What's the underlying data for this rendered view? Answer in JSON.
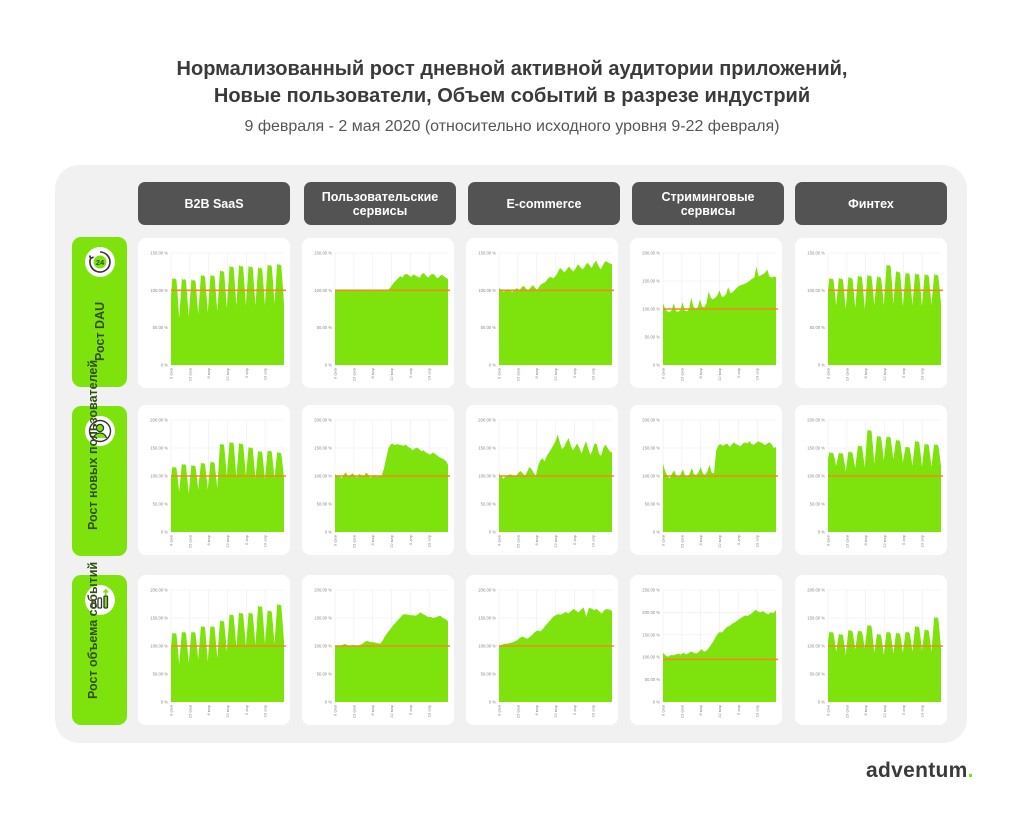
{
  "header": {
    "title_line1": "Нормализованный рост дневной активной аудитории приложений,",
    "title_line2": "Новые пользователи, Объем событий в разрезе индустрий",
    "subtitle": "9 февраля - 2 мая 2020 (относительно исходного уровня 9-22 февраля)"
  },
  "columns": [
    {
      "label": "B2B SaaS"
    },
    {
      "label": "Пользовательские сервисы"
    },
    {
      "label": "E-commerce"
    },
    {
      "label": "Стриминговые сервисы"
    },
    {
      "label": "Финтех"
    }
  ],
  "rows": [
    {
      "label": "Рост DAU",
      "icon": "clock-24-icon"
    },
    {
      "label": "Рост новых пользователей",
      "icon": "add-user-icon"
    },
    {
      "label": "Рост объема событий",
      "icon": "bar-growth-icon"
    }
  ],
  "logo": {
    "text": "adventum",
    "dot": "."
  },
  "colors": {
    "area": "#7ee20d",
    "baseline": "#f08a1c",
    "header_bg": "#535353",
    "row_bg": "#7ee20d",
    "panel_bg": "#f1f1f1"
  },
  "chart_data": [
    {
      "type": "area",
      "row": "Рост DAU",
      "column": "B2B SaaS",
      "ylim": [
        0,
        150
      ],
      "yticks": [
        "0 %",
        "50.00 %",
        "100.00 %",
        "150.00 %"
      ],
      "xticks": [
        "9 фев",
        "23 фев",
        "8 мар",
        "22 мар",
        "5 апр",
        "19 апр"
      ],
      "baseline": 100,
      "pattern": "weekly",
      "weekly_peaks": [
        117,
        116,
        115,
        121,
        121,
        127,
        133,
        134,
        133,
        131,
        135,
        136
      ],
      "weekly_troughs": [
        63,
        65,
        68,
        70,
        72,
        76,
        80,
        80,
        80,
        80,
        82,
        82
      ]
    },
    {
      "type": "area",
      "row": "Рост DAU",
      "column": "Пользовательские сервисы",
      "ylim": [
        0,
        150
      ],
      "yticks": [
        "0 %",
        "50.00 %",
        "100.00 %",
        "150.00 %"
      ],
      "xticks": [
        "9 фев",
        "23 фев",
        "8 мар",
        "22 мар",
        "5 апр",
        "19 апр"
      ],
      "baseline": 100,
      "pattern": "smooth",
      "values": [
        100,
        100,
        100,
        100,
        100,
        100,
        100,
        100,
        100,
        100,
        100,
        100,
        100,
        100,
        100,
        100,
        100,
        100,
        100,
        100,
        100,
        100,
        100,
        100,
        100,
        102,
        106,
        110,
        113,
        116,
        119,
        117,
        121,
        122,
        120,
        118,
        121,
        120,
        118,
        117,
        122,
        123,
        119,
        117,
        121,
        122,
        120,
        116,
        118,
        121,
        119,
        117,
        115
      ]
    },
    {
      "type": "area",
      "row": "Рост DAU",
      "column": "E-commerce",
      "ylim": [
        0,
        150
      ],
      "yticks": [
        "0 %",
        "50.00 %",
        "100.00 %",
        "150.00 %"
      ],
      "xticks": [
        "9 фев",
        "23 фев",
        "8 мар",
        "22 мар",
        "5 апр",
        "19 апр"
      ],
      "baseline": 100,
      "pattern": "smooth",
      "values": [
        103,
        101,
        98,
        100,
        102,
        99,
        98,
        101,
        103,
        100,
        104,
        106,
        102,
        100,
        104,
        107,
        103,
        101,
        106,
        109,
        110,
        113,
        117,
        118,
        116,
        119,
        124,
        130,
        127,
        124,
        128,
        132,
        128,
        125,
        130,
        135,
        131,
        128,
        132,
        137,
        134,
        130,
        136,
        140,
        133,
        128,
        134,
        139,
        138,
        136,
        135
      ]
    },
    {
      "type": "area",
      "row": "Рост DAU",
      "column": "Стриминговые сервисы",
      "ylim": [
        0,
        200
      ],
      "yticks": [
        "0 %",
        "50.00 %",
        "100.00 %",
        "150.00 %",
        "200.00 %"
      ],
      "xticks": [
        "9 фев",
        "23 фев",
        "8 мар",
        "22 мар",
        "5 апр",
        "19 апр"
      ],
      "baseline": 100,
      "pattern": "smooth",
      "values": [
        110,
        100,
        96,
        94,
        98,
        110,
        96,
        95,
        98,
        112,
        97,
        96,
        100,
        120,
        104,
        101,
        103,
        117,
        104,
        103,
        110,
        131,
        120,
        117,
        120,
        124,
        133,
        122,
        122,
        126,
        139,
        128,
        130,
        134,
        138,
        141,
        143,
        144,
        146,
        148,
        151,
        154,
        156,
        176,
        158,
        160,
        162,
        165,
        170,
        158,
        156,
        158,
        157
      ]
    },
    {
      "type": "area",
      "row": "Рост DAU",
      "column": "Финтех",
      "ylim": [
        0,
        150
      ],
      "yticks": [
        "0 %",
        "50.00 %",
        "100.00 %",
        "150.00 %"
      ],
      "xticks": [
        "9 фев",
        "23 фев",
        "8 мар",
        "22 мар",
        "5 апр",
        "19 апр"
      ],
      "baseline": 100,
      "pattern": "weekly",
      "weekly_peaks": [
        117,
        117,
        118,
        120,
        121,
        119,
        135,
        126,
        124,
        123,
        122,
        122
      ],
      "weekly_troughs": [
        80,
        75,
        77,
        75,
        80,
        80,
        82,
        78,
        80,
        78,
        80,
        82
      ]
    },
    {
      "type": "area",
      "row": "Рост новых пользователей",
      "column": "B2B SaaS",
      "ylim": [
        0,
        200
      ],
      "yticks": [
        "0 %",
        "50.00 %",
        "100.00 %",
        "150.00 %",
        "200.00 %"
      ],
      "xticks": [
        "9 фев",
        "23 фев",
        "8 мар",
        "22 мар",
        "5 апр",
        "19 апр"
      ],
      "baseline": 100,
      "pattern": "weekly",
      "weekly_peaks": [
        117,
        122,
        120,
        124,
        126,
        158,
        161,
        159,
        152,
        145,
        146,
        143
      ],
      "weekly_troughs": [
        72,
        68,
        76,
        76,
        78,
        100,
        98,
        100,
        96,
        94,
        96,
        96
      ]
    },
    {
      "type": "area",
      "row": "Рост новых пользователей",
      "column": "Пользовательские сервисы",
      "ylim": [
        0,
        200
      ],
      "yticks": [
        "0 %",
        "50.00 %",
        "100.00 %",
        "150.00 %",
        "200.00 %"
      ],
      "xticks": [
        "9 фев",
        "23 фев",
        "8 мар",
        "22 мар",
        "5 апр",
        "19 апр"
      ],
      "baseline": 100,
      "pattern": "smooth",
      "values": [
        104,
        99,
        101,
        96,
        103,
        106,
        98,
        102,
        105,
        100,
        97,
        104,
        101,
        99,
        106,
        103,
        97,
        100,
        102,
        98,
        101,
        100,
        112,
        130,
        148,
        156,
        158,
        155,
        157,
        156,
        155,
        154,
        156,
        152,
        150,
        146,
        149,
        151,
        148,
        144,
        146,
        142,
        140,
        138,
        142,
        140,
        137,
        134,
        132,
        130,
        127,
        120
      ]
    },
    {
      "type": "area",
      "row": "Рост новых пользователей",
      "column": "E-commerce",
      "ylim": [
        0,
        200
      ],
      "yticks": [
        "0 %",
        "50.00 %",
        "100.00 %",
        "150.00 %",
        "200.00 %"
      ],
      "xticks": [
        "9 фев",
        "23 фев",
        "8 мар",
        "22 мар",
        "5 апр",
        "19 апр"
      ],
      "baseline": 100,
      "pattern": "smooth",
      "values": [
        104,
        100,
        95,
        99,
        101,
        103,
        102,
        100,
        101,
        106,
        109,
        104,
        101,
        108,
        116,
        112,
        105,
        101,
        118,
        128,
        132,
        126,
        136,
        142,
        148,
        155,
        162,
        174,
        160,
        148,
        152,
        160,
        168,
        155,
        146,
        152,
        158,
        150,
        140,
        152,
        162,
        150,
        138,
        146,
        158,
        157,
        140,
        136,
        150,
        156,
        150,
        144,
        142
      ]
    },
    {
      "type": "area",
      "row": "Рост новых пользователей",
      "column": "Стриминговые сервисы",
      "ylim": [
        0,
        200
      ],
      "yticks": [
        "0 %",
        "50.00 %",
        "100.00 %",
        "150.00 %",
        "200.00 %"
      ],
      "xticks": [
        "9 фев",
        "23 фев",
        "8 мар",
        "22 мар",
        "5 апр",
        "19 апр"
      ],
      "baseline": 100,
      "pattern": "smooth",
      "values": [
        122,
        108,
        100,
        96,
        104,
        110,
        101,
        98,
        103,
        112,
        100,
        98,
        104,
        114,
        103,
        102,
        106,
        116,
        104,
        102,
        108,
        120,
        106,
        104,
        145,
        155,
        157,
        154,
        156,
        158,
        152,
        156,
        160,
        157,
        155,
        153,
        158,
        160,
        158,
        162,
        157,
        156,
        159,
        162,
        160,
        158,
        155,
        158,
        160,
        157,
        150,
        152
      ]
    },
    {
      "type": "area",
      "row": "Рост новых пользователей",
      "column": "Финтех",
      "ylim": [
        0,
        200
      ],
      "yticks": [
        "0 %",
        "50.00 %",
        "100.00 %",
        "150.00 %",
        "200.00 %"
      ],
      "xticks": [
        "9 фев",
        "23 фев",
        "8 мар",
        "22 мар",
        "5 апр",
        "19 апр"
      ],
      "baseline": 100,
      "pattern": "weekly",
      "weekly_peaks": [
        143,
        142,
        144,
        155,
        183,
        172,
        171,
        165,
        153,
        163,
        158,
        157
      ],
      "weekly_troughs": [
        118,
        108,
        114,
        115,
        122,
        128,
        130,
        124,
        118,
        116,
        116,
        118
      ]
    },
    {
      "type": "area",
      "row": "Рост объема событий",
      "column": "B2B SaaS",
      "ylim": [
        0,
        200
      ],
      "yticks": [
        "0 %",
        "50.00 %",
        "100.00 %",
        "150.00 %",
        "200.00 %"
      ],
      "xticks": [
        "9 фев",
        "23 фев",
        "8 мар",
        "22 мар",
        "5 апр",
        "19 апр"
      ],
      "baseline": 100,
      "pattern": "weekly",
      "weekly_peaks": [
        124,
        126,
        126,
        136,
        136,
        146,
        157,
        160,
        160,
        172,
        164,
        175
      ],
      "weekly_troughs": [
        68,
        70,
        76,
        72,
        78,
        90,
        98,
        100,
        102,
        104,
        104,
        108
      ]
    },
    {
      "type": "area",
      "row": "Рост объема событий",
      "column": "Пользовательские сервисы",
      "ylim": [
        0,
        200
      ],
      "yticks": [
        "0 %",
        "50.00 %",
        "100.00 %",
        "150.00 %",
        "200.00 %"
      ],
      "xticks": [
        "9 фев",
        "23 фев",
        "8 мар",
        "22 мар",
        "5 апр",
        "19 апр"
      ],
      "baseline": 100,
      "pattern": "smooth",
      "values": [
        100,
        101,
        100,
        102,
        104,
        101,
        99,
        102,
        101,
        100,
        102,
        104,
        108,
        109,
        107,
        107,
        106,
        105,
        104,
        110,
        118,
        124,
        130,
        136,
        141,
        146,
        151,
        156,
        157,
        156,
        155,
        155,
        154,
        156,
        160,
        157,
        155,
        152,
        152,
        150,
        151,
        153,
        154,
        150,
        148,
        144
      ]
    },
    {
      "type": "area",
      "row": "Рост объема событий",
      "column": "E-commerce",
      "ylim": [
        0,
        200
      ],
      "yticks": [
        "0 %",
        "50.00 %",
        "100.00 %",
        "150.00 %",
        "200.00 %"
      ],
      "xticks": [
        "9 фев",
        "23 фев",
        "8 мар",
        "22 мар",
        "5 апр",
        "19 апр"
      ],
      "baseline": 100,
      "pattern": "smooth",
      "values": [
        100,
        102,
        104,
        104,
        105,
        106,
        108,
        110,
        114,
        117,
        115,
        113,
        116,
        120,
        125,
        128,
        126,
        130,
        136,
        141,
        146,
        152,
        155,
        157,
        156,
        158,
        161,
        158,
        162,
        166,
        163,
        160,
        165,
        169,
        152,
        168,
        167,
        164,
        166,
        162,
        158,
        164,
        166,
        165,
        163
      ]
    },
    {
      "type": "area",
      "row": "Рост объема событий",
      "column": "Стриминговые сервисы",
      "ylim": [
        0,
        250
      ],
      "yticks": [
        "0 %",
        "50.00 %",
        "100.00 %",
        "150.00 %",
        "200.00 %",
        "250.00 %"
      ],
      "xticks": [
        "9 фев",
        "23 фев",
        "8 мар",
        "22 мар",
        "5 апр",
        "19 апр"
      ],
      "baseline": 95,
      "pattern": "smooth",
      "values": [
        110,
        104,
        101,
        105,
        104,
        106,
        108,
        106,
        110,
        106,
        109,
        113,
        110,
        108,
        112,
        118,
        112,
        115,
        122,
        130,
        140,
        150,
        156,
        155,
        162,
        168,
        170,
        175,
        178,
        182,
        186,
        190,
        193,
        192,
        196,
        200,
        206,
        202,
        200,
        203,
        198,
        196,
        200,
        198,
        205
      ]
    },
    {
      "type": "area",
      "row": "Рост объема событий",
      "column": "Финтех",
      "ylim": [
        0,
        200
      ],
      "yticks": [
        "0 %",
        "50.00 %",
        "100.00 %",
        "150.00 %",
        "200.00 %"
      ],
      "xticks": [
        "9 фев",
        "23 фев",
        "8 мар",
        "22 мар",
        "5 апр",
        "19 апр"
      ],
      "baseline": 100,
      "pattern": "weekly",
      "weekly_peaks": [
        126,
        122,
        129,
        128,
        138,
        122,
        126,
        124,
        126,
        136,
        130,
        152
      ],
      "weekly_troughs": [
        90,
        84,
        94,
        96,
        88,
        84,
        86,
        88,
        90,
        92,
        90,
        96
      ]
    }
  ]
}
